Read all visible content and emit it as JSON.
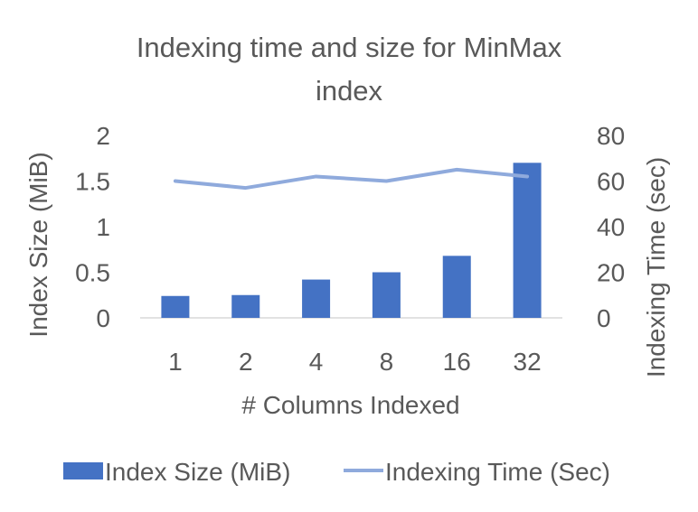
{
  "chart_data": {
    "type": "bar",
    "title": "Indexing time and size for MinMax index",
    "title_lines": [
      "Indexing time and size for MinMax",
      "index"
    ],
    "xlabel": "# Columns Indexed",
    "ylabel": "Index Size (MiB)",
    "y2label": "Indexing Time (sec)",
    "categories": [
      "1",
      "2",
      "4",
      "8",
      "16",
      "32"
    ],
    "ylim": [
      0,
      2
    ],
    "y2lim": [
      0,
      80
    ],
    "yticks": [
      "0",
      "0.5",
      "1",
      "1.5",
      "2"
    ],
    "y2ticks": [
      "0",
      "20",
      "40",
      "60",
      "80"
    ],
    "grid": false,
    "legend_position": "bottom",
    "series": [
      {
        "name": "Index Size (MiB)",
        "type": "bar",
        "axis": "left",
        "color": "#4472C4",
        "values": [
          0.24,
          0.25,
          0.42,
          0.5,
          0.68,
          1.7
        ]
      },
      {
        "name": "Indexing Time (Sec)",
        "type": "line",
        "axis": "right",
        "color": "#8FAADC",
        "values": [
          60,
          57,
          62,
          60,
          65,
          62
        ]
      }
    ]
  }
}
